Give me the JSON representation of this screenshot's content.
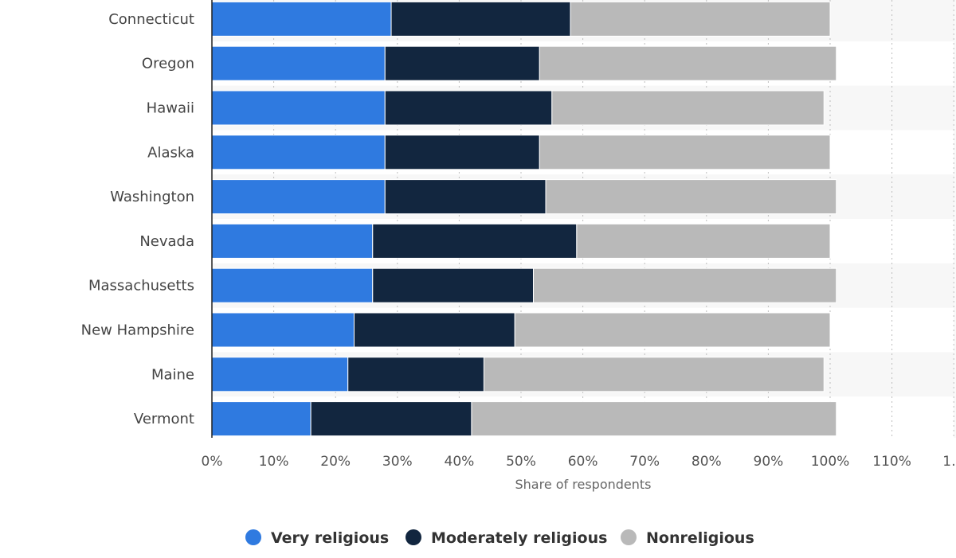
{
  "chart_data": {
    "type": "bar",
    "orientation": "horizontal",
    "stacked": true,
    "categories": [
      "Connecticut",
      "Oregon",
      "Hawaii",
      "Alaska",
      "Washington",
      "Nevada",
      "Massachusetts",
      "New Hampshire",
      "Maine",
      "Vermont"
    ],
    "series": [
      {
        "name": "Very religious",
        "color": "#2f7ae0",
        "values": [
          29,
          28,
          28,
          28,
          28,
          26,
          26,
          23,
          22,
          16
        ]
      },
      {
        "name": "Moderately religious",
        "color": "#12263f",
        "values": [
          29,
          25,
          27,
          25,
          26,
          33,
          26,
          26,
          22,
          26
        ]
      },
      {
        "name": "Nonreligious",
        "color": "#b9b9b9",
        "values": [
          42,
          48,
          44,
          47,
          47,
          41,
          49,
          51,
          55,
          59
        ]
      }
    ],
    "xlabel": "Share of respondents",
    "ylabel": "",
    "xlim": [
      0,
      120
    ],
    "xtick_labels": [
      "0%",
      "10%",
      "20%",
      "30%",
      "40%",
      "50%",
      "60%",
      "70%",
      "80%",
      "90%",
      "100%",
      "110%",
      "1…"
    ],
    "grid": true,
    "legend_position": "bottom-center"
  }
}
